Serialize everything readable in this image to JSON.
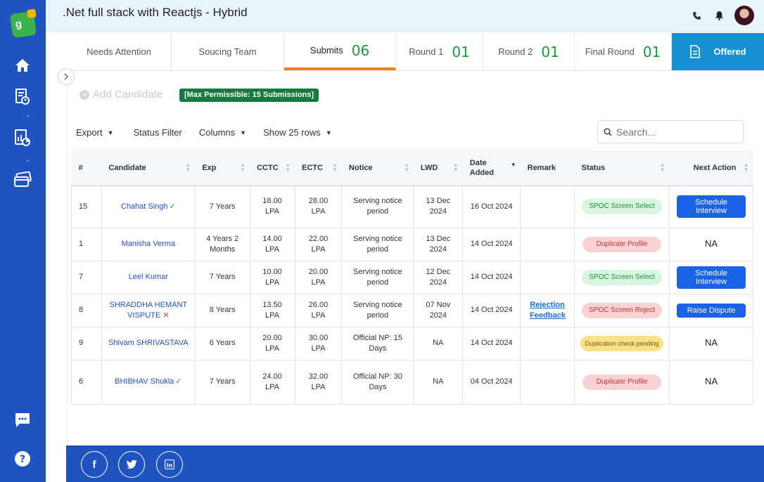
{
  "app": {
    "logo_text": "g"
  },
  "header": {
    "title": ".Net full stack with Reactjs - Hybrid"
  },
  "sidebar": {
    "icons": [
      "home-icon",
      "resume-search-icon",
      "reports-icon",
      "payment-card-icon",
      "chat-icon",
      "help-icon"
    ]
  },
  "tabs": [
    {
      "label": "Needs Attention",
      "count": ""
    },
    {
      "label": "Soucing Team",
      "count": ""
    },
    {
      "label": "Submits",
      "count": "06"
    },
    {
      "label": "Round 1",
      "count": "01"
    },
    {
      "label": "Round 2",
      "count": "01"
    },
    {
      "label": "Final Round",
      "count": "01"
    },
    {
      "label": "Offered",
      "count": ""
    }
  ],
  "add_candidate": {
    "label": "Add Candidate",
    "max_badge": "[Max Permissible: 15 Submissions]"
  },
  "toolbar": {
    "export": "Export",
    "status_filter": "Status Filter",
    "columns": "Columns",
    "show_rows": "Show 25 rows"
  },
  "search": {
    "placeholder": "Search..."
  },
  "table": {
    "headers": [
      "#",
      "Candidate",
      "Exp",
      "CCTC",
      "ECTC",
      "Notice",
      "LWD",
      "Date Added",
      "Remark",
      "Status",
      "Next Action"
    ],
    "rows": [
      {
        "id": "15",
        "candidate": "Chahat Singh",
        "mark": "check",
        "exp": "7 Years",
        "cctc": "18.00 LPA",
        "ectc": "28.00 LPA",
        "notice": "Serving notice period",
        "lwd": "13 Dec 2024",
        "date_added": "16 Oct 2024",
        "remark": "",
        "status": "SPOC Screen Select",
        "status_color": "green",
        "action": "Schedule Interview",
        "action_type": "button"
      },
      {
        "id": "1",
        "candidate": "Manisha Verma",
        "mark": "",
        "exp": "4 Years 2 Months",
        "cctc": "14.00 LPA",
        "ectc": "22.00 LPA",
        "notice": "Serving notice period",
        "lwd": "13 Dec 2024",
        "date_added": "14 Oct 2024",
        "remark": "",
        "status": "Duplicate Profile",
        "status_color": "red",
        "action": "NA",
        "action_type": "text"
      },
      {
        "id": "7",
        "candidate": "Leel Kumar",
        "mark": "",
        "exp": "7 Years",
        "cctc": "10.00 LPA",
        "ectc": "20.00 LPA",
        "notice": "Serving notice period",
        "lwd": "12 Dec 2024",
        "date_added": "14 Oct 2024",
        "remark": "",
        "status": "SPOC Screen Select",
        "status_color": "green",
        "action": "Schedule Interview",
        "action_type": "button"
      },
      {
        "id": "8",
        "candidate": "SHRADDHA HEMANT VISPUTE",
        "mark": "cross",
        "exp": "8 Years",
        "cctc": "13.50 LPA",
        "ectc": "26.00 LPA",
        "notice": "Serving notice period",
        "lwd": "07 Nov 2024",
        "date_added": "14 Oct 2024",
        "remark": "Rejection Feedback",
        "status": "SPOC Screen Reject",
        "status_color": "red",
        "action": "Raise Dispute",
        "action_type": "button"
      },
      {
        "id": "9",
        "candidate": "Shivam SHRIVASTAVA",
        "mark": "",
        "exp": "6 Years",
        "cctc": "20.00 LPA",
        "ectc": "30.00 LPA",
        "notice": "Official NP: 15 Days",
        "lwd": "NA",
        "date_added": "14 Oct 2024",
        "remark": "",
        "status": "Duplication check pending",
        "status_color": "yellow",
        "action": "NA",
        "action_type": "text"
      },
      {
        "id": "6",
        "candidate": "BHIBHAV Shukla",
        "mark": "check",
        "exp": "7 Years",
        "cctc": "24.00 LPA",
        "ectc": "32.00 LPA",
        "notice": "Official NP: 30 Days",
        "lwd": "NA",
        "date_added": "04 Oct 2024",
        "remark": "",
        "status": "Duplicate Profile",
        "status_color": "red",
        "action": "NA",
        "action_type": "text"
      }
    ]
  },
  "footer": {
    "social": [
      "f",
      "t",
      "in"
    ]
  }
}
